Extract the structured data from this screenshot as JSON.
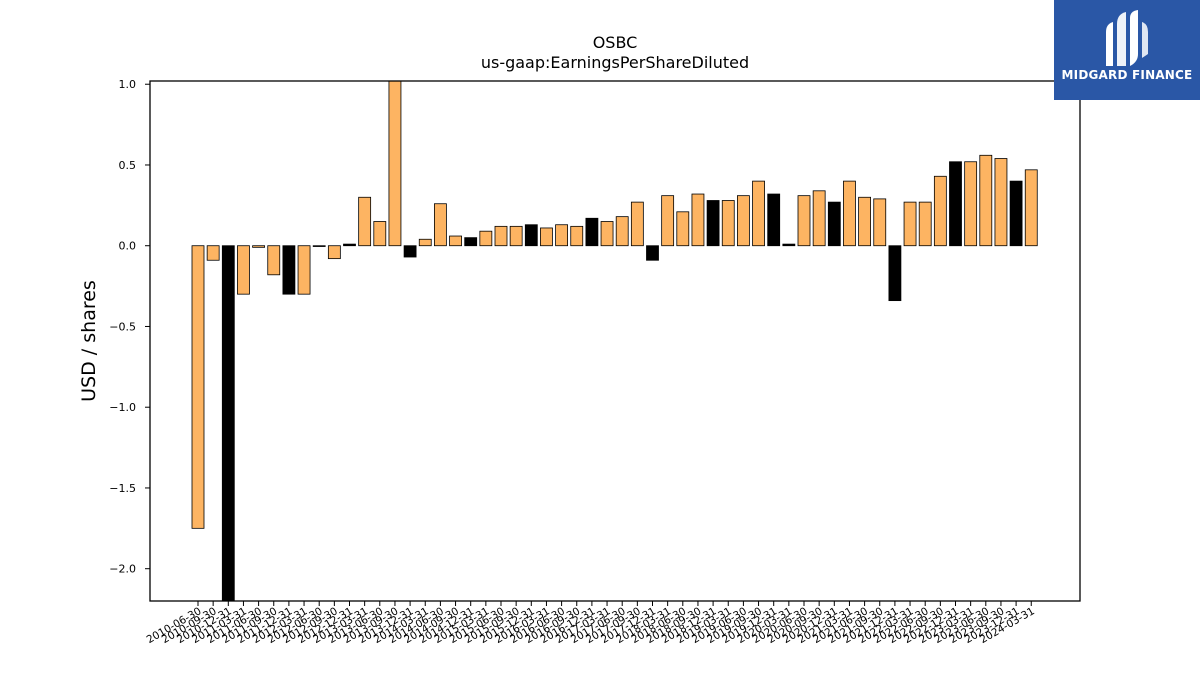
{
  "brand": {
    "name": "MIDGARD FINANCE",
    "bg_color": "#2a57a6"
  },
  "chart_data": {
    "type": "bar",
    "title": "OSBC",
    "subtitle": "us-gaap:EarningsPerShareDiluted",
    "ylabel": "USD / shares",
    "xlabel": "",
    "ylim": [
      -2.2,
      1.02
    ],
    "yticks": [
      -2.0,
      -1.5,
      -1.0,
      -0.5,
      0.0,
      0.5,
      1.0
    ],
    "ytick_labels": [
      "−2.0",
      "−1.5",
      "−1.0",
      "−0.5",
      "0.0",
      "0.5",
      "1.0"
    ],
    "grid": false,
    "legend": "none",
    "colors": {
      "primary": "#fdb462",
      "highlight": "#000000"
    },
    "categories": [
      "2010-06-30",
      "2010-09-30",
      "2010-12-31",
      "2011-03-31",
      "2011-06-30",
      "2011-09-30",
      "2011-12-31",
      "2012-03-31",
      "2012-06-30",
      "2012-09-30",
      "2012-12-31",
      "2013-03-31",
      "2013-06-30",
      "2013-09-30",
      "2013-12-31",
      "2014-03-31",
      "2014-06-30",
      "2014-09-30",
      "2014-12-31",
      "2015-03-31",
      "2015-06-30",
      "2015-09-30",
      "2015-12-31",
      "2016-03-31",
      "2016-06-30",
      "2016-09-30",
      "2016-12-31",
      "2017-03-31",
      "2017-06-30",
      "2017-09-30",
      "2017-12-31",
      "2018-03-31",
      "2018-06-30",
      "2018-09-30",
      "2018-12-31",
      "2019-03-31",
      "2019-06-30",
      "2019-09-30",
      "2019-12-31",
      "2020-03-31",
      "2020-06-30",
      "2020-09-30",
      "2020-12-31",
      "2021-03-31",
      "2021-06-30",
      "2021-09-30",
      "2021-12-31",
      "2022-03-31",
      "2022-06-30",
      "2022-09-30",
      "2022-12-31",
      "2023-03-31",
      "2023-06-30",
      "2023-09-30",
      "2023-12-31",
      "2024-03-31"
    ],
    "values": [
      -1.75,
      -0.09,
      -2.3,
      -0.3,
      -0.01,
      -0.18,
      -0.3,
      -0.3,
      0.0,
      -0.08,
      0.01,
      0.3,
      0.15,
      1.03,
      -0.07,
      0.04,
      0.26,
      0.06,
      0.05,
      0.09,
      0.12,
      0.12,
      0.13,
      0.11,
      0.13,
      0.12,
      0.17,
      0.15,
      0.18,
      0.27,
      -0.09,
      0.31,
      0.21,
      0.32,
      0.28,
      0.28,
      0.31,
      0.4,
      0.32,
      0.01,
      0.31,
      0.34,
      0.27,
      0.4,
      0.3,
      0.29,
      -0.34,
      0.27,
      0.27,
      0.43,
      0.52,
      0.52,
      0.56,
      0.54,
      0.4,
      0.47
    ],
    "highlight": [
      false,
      false,
      true,
      false,
      false,
      false,
      true,
      false,
      false,
      false,
      true,
      false,
      false,
      false,
      true,
      false,
      false,
      false,
      true,
      false,
      false,
      false,
      true,
      false,
      false,
      false,
      true,
      false,
      false,
      false,
      true,
      false,
      false,
      false,
      true,
      false,
      false,
      false,
      true,
      true,
      false,
      false,
      true,
      false,
      false,
      false,
      true,
      false,
      false,
      false,
      true,
      false,
      false,
      false,
      true,
      false
    ]
  }
}
